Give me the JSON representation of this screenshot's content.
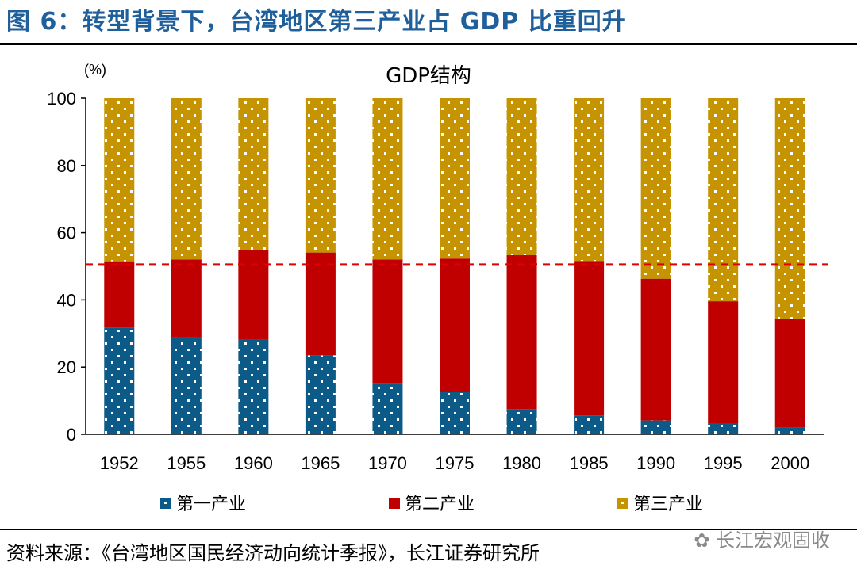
{
  "figure_title": "图 6：转型背景下，台湾地区第三产业占 GDP 比重回升",
  "source_note": "资料来源：《台湾地区国民经济动向统计季报》，长江证券研究所",
  "watermark": "长江宏观固收",
  "colors": {
    "title": "#1f5f9c",
    "primary": "#0b5a87",
    "secondary": "#c00000",
    "tertiary": "#c59400",
    "reference_line": "#e00000",
    "dots": "#ffffff"
  },
  "chart_data": {
    "type": "bar",
    "stacked": true,
    "title": "GDP结构",
    "ylabel": "(%)",
    "ylim": [
      0,
      100
    ],
    "yticks": [
      0,
      20,
      40,
      60,
      80,
      100
    ],
    "categories": [
      "1952",
      "1955",
      "1960",
      "1965",
      "1970",
      "1975",
      "1980",
      "1985",
      "1990",
      "1995",
      "2000"
    ],
    "series": [
      {
        "name": "第一产业",
        "values": [
          31.8,
          28.8,
          28.2,
          23.5,
          15.3,
          12.6,
          7.5,
          5.6,
          4.1,
          3.3,
          2.1
        ],
        "pattern": "dots"
      },
      {
        "name": "第二产业",
        "values": [
          19.7,
          23.2,
          26.7,
          30.6,
          36.7,
          39.7,
          45.8,
          46.0,
          42.2,
          36.3,
          32.2
        ],
        "pattern": "solid"
      },
      {
        "name": "第三产业",
        "values": [
          48.5,
          48.0,
          45.1,
          45.9,
          48.0,
          47.7,
          46.7,
          48.4,
          53.7,
          60.4,
          65.7
        ],
        "pattern": "dots"
      }
    ],
    "reference_line": {
      "y": 50.5,
      "style": "dashed"
    },
    "legend_position": "bottom",
    "grid": false
  }
}
